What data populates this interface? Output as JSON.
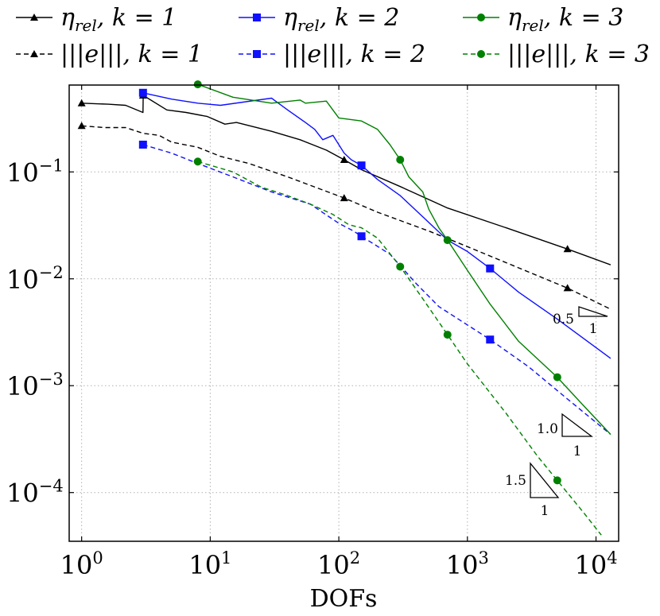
{
  "chart_data": {
    "type": "line",
    "x_scale": "log",
    "y_scale": "log",
    "xlabel": "DOFs",
    "ylabel": "",
    "xlim": [
      0.8,
      15000
    ],
    "ylim": [
      3.5e-05,
      0.65
    ],
    "grid": true,
    "grid_style": "dotted",
    "legend_position": "top",
    "x_ticks": [
      {
        "base": "10",
        "exp": "0",
        "value": 1
      },
      {
        "base": "10",
        "exp": "1",
        "value": 10
      },
      {
        "base": "10",
        "exp": "2",
        "value": 100
      },
      {
        "base": "10",
        "exp": "3",
        "value": 1000
      },
      {
        "base": "10",
        "exp": "4",
        "value": 10000
      }
    ],
    "y_ticks": [
      {
        "base": "10",
        "exp": "−1",
        "value": 0.1
      },
      {
        "base": "10",
        "exp": "−2",
        "value": 0.01
      },
      {
        "base": "10",
        "exp": "−3",
        "value": 0.001
      },
      {
        "base": "10",
        "exp": "−4",
        "value": 0.0001
      }
    ],
    "series": [
      {
        "name": "η_rel, k = 1",
        "legend_main": "η",
        "legend_sub": "rel",
        "legend_tail": ", k = 1",
        "color": "#000000",
        "dash": "solid",
        "marker": "triangle",
        "x": [
          1,
          1.6,
          2.2,
          3,
          3.01,
          4.6,
          6.5,
          9.5,
          13,
          16,
          30,
          50,
          80,
          110,
          150,
          300,
          700,
          2000,
          6000,
          13000
        ],
        "y": [
          0.44,
          0.43,
          0.42,
          0.36,
          0.52,
          0.38,
          0.36,
          0.33,
          0.28,
          0.29,
          0.24,
          0.2,
          0.16,
          0.13,
          0.105,
          0.073,
          0.046,
          0.03,
          0.019,
          0.0135
        ],
        "marker_x": [
          1,
          3,
          110,
          6000
        ],
        "marker_y": [
          0.44,
          0.52,
          0.13,
          0.019
        ]
      },
      {
        "name": "|||e|||, k = 1",
        "legend_main": "|||e|||",
        "legend_sub": "",
        "legend_tail": ", k = 1",
        "color": "#000000",
        "dash": "dashed",
        "marker": "triangle",
        "x": [
          1,
          1.5,
          2.2,
          3,
          4,
          5,
          8,
          12,
          20,
          40,
          110,
          200,
          500,
          1000,
          6000,
          13000
        ],
        "y": [
          0.27,
          0.26,
          0.26,
          0.23,
          0.22,
          0.19,
          0.17,
          0.14,
          0.12,
          0.09,
          0.057,
          0.042,
          0.028,
          0.02,
          0.0082,
          0.0052
        ],
        "marker_x": [
          1,
          110,
          6000
        ],
        "marker_y": [
          0.27,
          0.057,
          0.0082
        ]
      },
      {
        "name": "η_rel, k = 2",
        "legend_main": "η",
        "legend_sub": "rel",
        "legend_tail": ", k = 2",
        "color": "#1010ff",
        "dash": "solid",
        "marker": "square",
        "x": [
          3,
          5,
          8,
          12,
          18,
          30,
          40,
          55,
          65,
          75,
          90,
          110,
          125,
          150,
          200,
          300,
          450,
          700,
          1000,
          1500,
          2500,
          5000,
          13000
        ],
        "y": [
          0.55,
          0.48,
          0.44,
          0.42,
          0.45,
          0.49,
          0.38,
          0.29,
          0.25,
          0.2,
          0.22,
          0.15,
          0.13,
          0.115,
          0.085,
          0.06,
          0.038,
          0.023,
          0.018,
          0.0125,
          0.0075,
          0.0042,
          0.0018
        ],
        "marker_x": [
          3,
          150,
          1500
        ],
        "marker_y": [
          0.55,
          0.115,
          0.0125
        ]
      },
      {
        "name": "|||e|||, k = 2",
        "legend_main": "|||e|||",
        "legend_sub": "",
        "legend_tail": ", k = 2",
        "color": "#1010ff",
        "dash": "dashed",
        "marker": "square",
        "x": [
          3,
          5,
          8,
          15,
          30,
          60,
          100,
          130,
          150,
          250,
          400,
          600,
          1000,
          1500,
          3000,
          6000,
          13000
        ],
        "y": [
          0.18,
          0.15,
          0.12,
          0.09,
          0.065,
          0.05,
          0.033,
          0.028,
          0.025,
          0.017,
          0.009,
          0.0055,
          0.0037,
          0.0027,
          0.0015,
          0.00075,
          0.00035
        ],
        "marker_x": [
          3,
          150,
          1500
        ],
        "marker_y": [
          0.18,
          0.025,
          0.0027
        ]
      },
      {
        "name": "η_rel, k = 3",
        "legend_main": "η",
        "legend_sub": "rel",
        "legend_tail": ", k = 3",
        "color": "#008000",
        "dash": "solid",
        "marker": "circle",
        "x": [
          8,
          15,
          30,
          50,
          55,
          80,
          100,
          150,
          200,
          250,
          300,
          350,
          450,
          500,
          600,
          700,
          1000,
          1500,
          2500,
          5000,
          8000,
          13000
        ],
        "y": [
          0.66,
          0.5,
          0.44,
          0.47,
          0.44,
          0.46,
          0.32,
          0.3,
          0.25,
          0.18,
          0.13,
          0.09,
          0.065,
          0.045,
          0.03,
          0.023,
          0.012,
          0.0058,
          0.0026,
          0.0012,
          0.00065,
          0.00035
        ],
        "marker_x": [
          8,
          300,
          700,
          5000
        ],
        "marker_y": [
          0.66,
          0.13,
          0.023,
          0.0012
        ]
      },
      {
        "name": "|||e|||, k = 3",
        "legend_main": "|||e|||",
        "legend_sub": "",
        "legend_tail": ", k = 3",
        "color": "#008000",
        "dash": "dashed",
        "marker": "circle",
        "x": [
          8,
          15,
          25,
          40,
          60,
          90,
          120,
          150,
          200,
          300,
          450,
          700,
          1000,
          2000,
          3500,
          5000,
          8000,
          11000
        ],
        "y": [
          0.125,
          0.1,
          0.072,
          0.06,
          0.05,
          0.04,
          0.032,
          0.03,
          0.024,
          0.013,
          0.0065,
          0.003,
          0.0016,
          0.00055,
          0.00022,
          0.00013,
          6.5e-05,
          4e-05
        ],
        "marker_x": [
          8,
          300,
          700,
          5000
        ],
        "marker_y": [
          0.125,
          0.013,
          0.003,
          0.00013
        ]
      }
    ],
    "slope_triangles": [
      {
        "slope_label": "0.5",
        "run_label": "1"
      },
      {
        "slope_label": "1.0",
        "run_label": "1"
      },
      {
        "slope_label": "1.5",
        "run_label": "1"
      }
    ]
  }
}
